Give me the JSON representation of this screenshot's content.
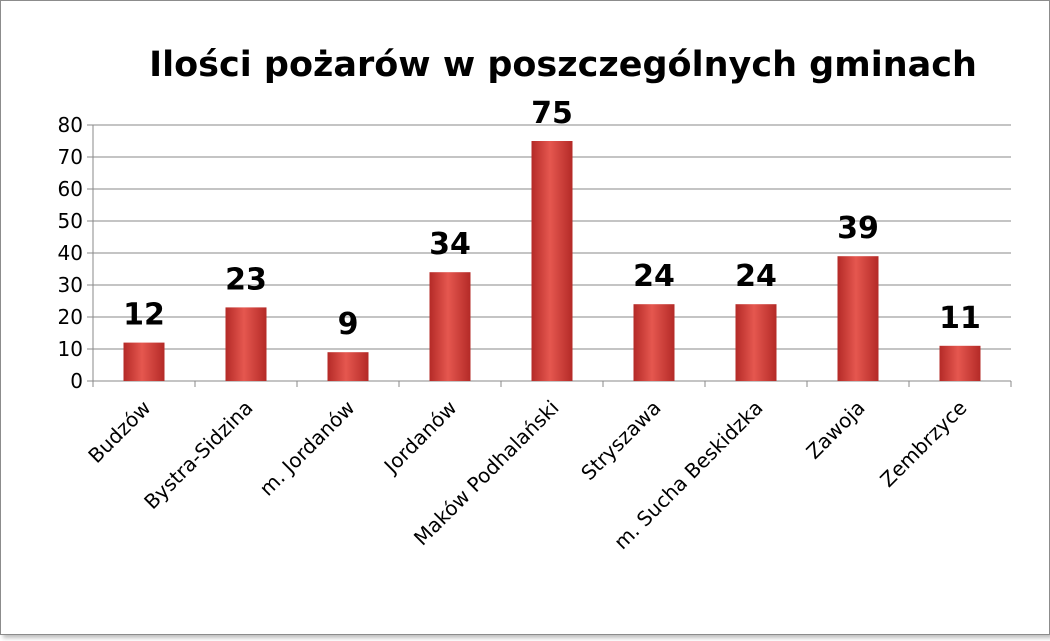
{
  "chart_data": {
    "type": "bar",
    "title": "Ilości pożarów w poszczególnych gminach",
    "categories": [
      "Budzów",
      "Bystra-Sidzina",
      "m. Jordanów",
      "Jordanów",
      "Maków Podhalański",
      "Stryszawa",
      "m. Sucha Beskidzka",
      "Zawoja",
      "Zembrzyce"
    ],
    "values": [
      12,
      23,
      9,
      34,
      75,
      24,
      24,
      39,
      11
    ],
    "data_labels": [
      "12",
      "23",
      "9",
      "34",
      "75",
      "24",
      "24",
      "39",
      "11"
    ],
    "ylim": [
      0,
      80
    ],
    "yticks": [
      0,
      10,
      20,
      30,
      40,
      50,
      60,
      70,
      80
    ],
    "ytick_labels": [
      "0",
      "10",
      "20",
      "30",
      "40",
      "50",
      "60",
      "70",
      "80"
    ],
    "grid": true,
    "legend": "none",
    "colors": {
      "bar_light": "#e5574f",
      "bar_dark": "#b42a27",
      "grid": "#8a8a8a",
      "axis": "#8a8a8a"
    }
  }
}
